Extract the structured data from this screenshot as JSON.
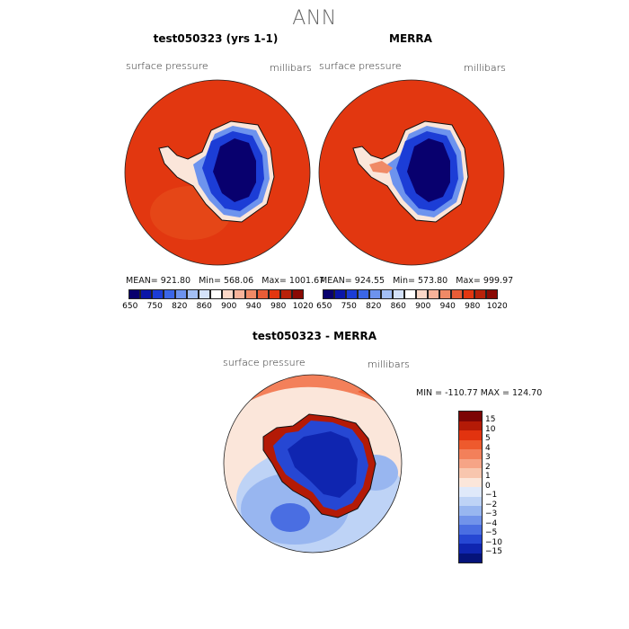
{
  "figure": {
    "title": "ANN"
  },
  "panels": [
    {
      "title": "test050323 (yrs 1-1)",
      "variable": "surface pressure",
      "units": "millibars",
      "stats": {
        "mean_label": "MEAN=",
        "mean": "921.80",
        "min_label": "Min=",
        "min": "568.06",
        "max_label": "Max=",
        "max": "1001.67"
      }
    },
    {
      "title": "MERRA",
      "variable": "surface pressure",
      "units": "millibars",
      "stats": {
        "mean_label": "MEAN=",
        "mean": "924.55",
        "min_label": "Min=",
        "min": "573.80",
        "max_label": "Max=",
        "max": "999.97"
      }
    },
    {
      "title": "test050323 - MERRA",
      "variable": "surface pressure",
      "units": "millibars",
      "stats_text": "MIN = -110.77   MAX = 124.70"
    }
  ],
  "colorbar_abs": {
    "labels": [
      "650",
      "750",
      "820",
      "860",
      "900",
      "940",
      "980",
      "1020"
    ],
    "colors": [
      "#08006e",
      "#0a16a8",
      "#1c3dd6",
      "#3b66e6",
      "#6d93ee",
      "#a3bff5",
      "#d4e2fa",
      "#ffffff",
      "#fbd8c8",
      "#f7b39a",
      "#f08a66",
      "#e85c37",
      "#e23710",
      "#b8220a",
      "#8a0a04"
    ]
  },
  "colorbar_diff": {
    "labels": [
      "15",
      "10",
      "5",
      "4",
      "3",
      "2",
      "1",
      "0",
      "−1",
      "−2",
      "−3",
      "−4",
      "−5",
      "−10",
      "−15"
    ],
    "colors": [
      "#7c0505",
      "#b41a06",
      "#e2330f",
      "#ee5a2d",
      "#f3805a",
      "#f6a486",
      "#f8c6ae",
      "#fbe6da",
      "#dfe9fa",
      "#bed3f6",
      "#98b6f0",
      "#7193ea",
      "#4a6ee2",
      "#2647d3",
      "#0f25b0",
      "#05137a"
    ]
  },
  "map_colors": {
    "ocean": "#e23710",
    "coast": "#111111",
    "land_deep": "#08006e",
    "land_mid": "#1c3dd6",
    "land_high": "#6d93ee",
    "land_edge": "#fbe6da",
    "diff_bg": "#fbe6da",
    "diff_light": "#bed3f6",
    "diff_mid": "#98b6f0",
    "diff_strong": "#4a6ee2",
    "diff_warm": "#f3805a"
  }
}
